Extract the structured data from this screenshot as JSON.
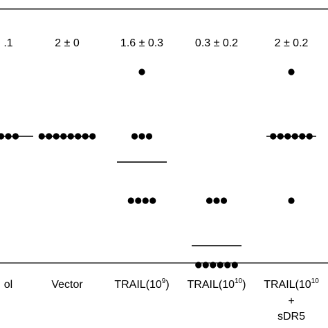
{
  "chart_data": {
    "type": "scatter",
    "categories": [
      {
        "name": "Control",
        "label_text": "ol",
        "sup": "",
        "label2": ""
      },
      {
        "name": "Vector",
        "label_text": "Vector",
        "sup": "",
        "label2": ""
      },
      {
        "name": "TRAIL(10^9)",
        "label_text": "TRAIL(10",
        "sup": "9",
        "label_close": ")",
        "label2": ""
      },
      {
        "name": "TRAIL(10^10)",
        "label_text": "TRAIL(10",
        "sup": "10",
        "label_close": ")",
        "label2": ""
      },
      {
        "name": "TRAIL(10^10) + sDR5",
        "label_text": "TRAIL(10",
        "sup": "10",
        "label_close": "",
        "label2_plus": "+",
        "label2": "sDR5"
      }
    ],
    "stats": [
      ".1",
      "2 ± 0",
      "1.6 ± 0.3",
      "0.3 ± 0.2",
      "2 ± 0.2"
    ],
    "points": [
      {
        "category": 0,
        "y": 2,
        "count": 3
      },
      {
        "category": 1,
        "y": 2,
        "count": 8
      },
      {
        "category": 2,
        "y": 3,
        "count": 1
      },
      {
        "category": 2,
        "y": 2,
        "count": 3
      },
      {
        "category": 2,
        "y": 1,
        "count": 4
      },
      {
        "category": 3,
        "y": 1,
        "count": 3
      },
      {
        "category": 3,
        "y": 0,
        "count": 6
      },
      {
        "category": 4,
        "y": 3,
        "count": 1
      },
      {
        "category": 4,
        "y": 2,
        "count": 6
      },
      {
        "category": 4,
        "y": 1,
        "count": 1
      }
    ],
    "means": [
      2,
      2,
      1.6,
      0.3,
      2
    ],
    "ylim": [
      0,
      3
    ],
    "grid": false,
    "legend": "none",
    "title": "",
    "xlabel": "",
    "ylabel": ""
  }
}
